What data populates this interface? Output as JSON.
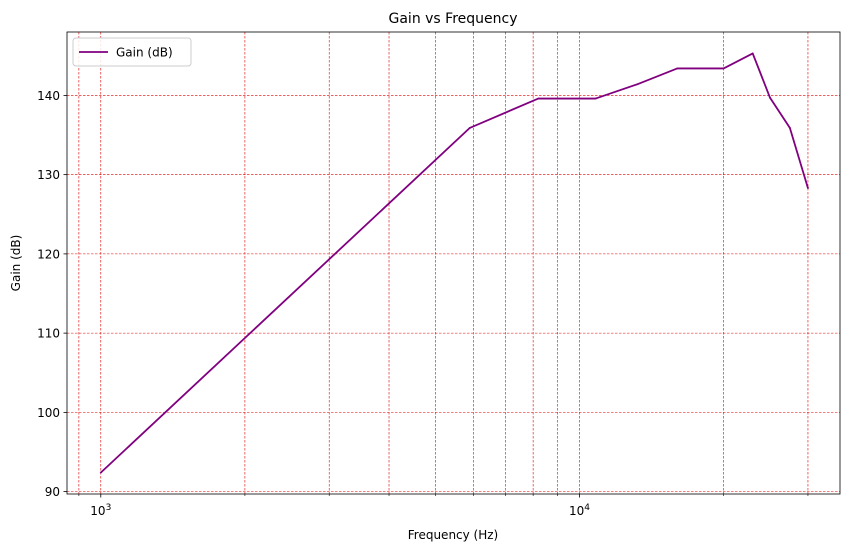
{
  "chart_data": {
    "type": "line",
    "title": "Gain vs Frequency",
    "xlabel": "Frequency (Hz)",
    "ylabel": "Gain (dB)",
    "xscale": "log",
    "xlim": [
      850,
      35000
    ],
    "ylim": [
      89.7,
      148
    ],
    "grid": true,
    "grid_color": "#e60000",
    "grid_style": "dashed",
    "legend_position": "upper-left",
    "x_major_ticks": [
      {
        "value": 1000,
        "base": "10",
        "exp": "3"
      },
      {
        "value": 10000,
        "base": "10",
        "exp": "4"
      }
    ],
    "x_minor_ticks": [
      900,
      2000,
      3000,
      4000,
      5000,
      6000,
      7000,
      8000,
      9000,
      20000,
      30000
    ],
    "y_ticks": [
      90,
      100,
      110,
      120,
      130,
      140
    ],
    "series": [
      {
        "name": "Gain (dB)",
        "color": "#800080",
        "x": [
          1000,
          5900,
          8200,
          10800,
          13200,
          16000,
          20000,
          23000,
          25000,
          27500,
          30000
        ],
        "y": [
          92.4,
          135.9,
          139.6,
          139.6,
          141.4,
          143.4,
          143.4,
          145.3,
          139.7,
          135.9,
          128.3
        ]
      }
    ]
  }
}
